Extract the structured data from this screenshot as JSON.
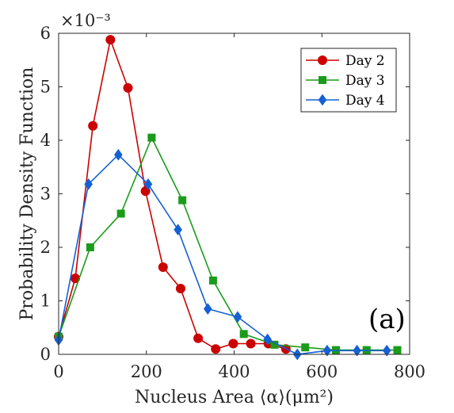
{
  "chart_data": {
    "type": "line",
    "xlabel": "Nucleus Area ⟨α⟩(μm²)",
    "ylabel": "Probability Density Function",
    "y_multiplier_label": "×10⁻³",
    "annotation": "(a)",
    "xlim": [
      0,
      800
    ],
    "ylim": [
      0,
      6
    ],
    "xticks": [
      0,
      200,
      400,
      600,
      800
    ],
    "yticks": [
      0,
      1,
      2,
      3,
      4,
      5,
      6
    ],
    "grid": false,
    "legend_position": "top-right",
    "series": [
      {
        "name": "Day 2",
        "color": "#cc0000",
        "marker": "circle",
        "x": [
          0,
          38,
          78,
          118,
          158,
          198,
          238,
          278,
          318,
          358,
          398,
          438,
          478,
          518
        ],
        "y": [
          0.33,
          1.42,
          4.27,
          5.88,
          4.98,
          3.05,
          1.63,
          1.23,
          0.3,
          0.1,
          0.2,
          0.2,
          0.2,
          0.1
        ]
      },
      {
        "name": "Day 3",
        "color": "#1a9c1a",
        "marker": "square",
        "x": [
          0,
          72,
          142,
          212,
          282,
          352,
          422,
          492,
          562,
          632,
          702,
          772
        ],
        "y": [
          0.33,
          2.0,
          2.63,
          4.05,
          2.88,
          1.38,
          0.38,
          0.18,
          0.13,
          0.08,
          0.08,
          0.08
        ]
      },
      {
        "name": "Day 4",
        "color": "#1560d4",
        "marker": "diamond",
        "x": [
          0,
          68,
          136,
          204,
          272,
          340,
          408,
          476,
          544,
          612,
          680,
          748
        ],
        "y": [
          0.27,
          3.18,
          3.73,
          3.18,
          2.33,
          0.85,
          0.7,
          0.28,
          0.0,
          0.07,
          0.07,
          0.07
        ]
      }
    ]
  }
}
